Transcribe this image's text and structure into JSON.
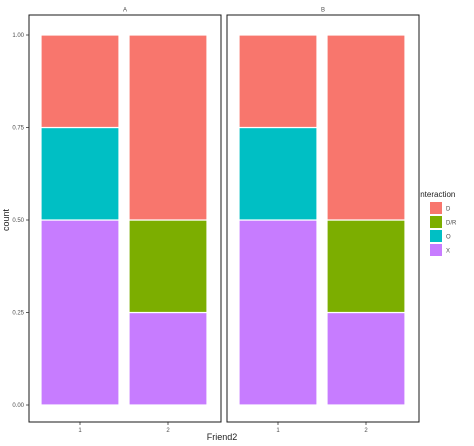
{
  "chart_data": {
    "type": "bar",
    "stacked": true,
    "xlabel": "Friend2",
    "ylabel": "count",
    "ylim": [
      0,
      1
    ],
    "y_ticks": [
      "0.00",
      "0.25",
      "0.50",
      "0.75",
      "1.00"
    ],
    "y_tick_values": [
      0,
      0.25,
      0.5,
      0.75,
      1
    ],
    "categories": [
      "1",
      "2"
    ],
    "facets": [
      {
        "label": "A",
        "bars": [
          {
            "category": "1",
            "segments": [
              {
                "group": "X",
                "value": 0.5
              },
              {
                "group": "O",
                "value": 0.25
              },
              {
                "group": "D",
                "value": 0.25
              }
            ]
          },
          {
            "category": "2",
            "segments": [
              {
                "group": "X",
                "value": 0.25
              },
              {
                "group": "D/R",
                "value": 0.25
              },
              {
                "group": "D",
                "value": 0.5
              }
            ]
          }
        ]
      },
      {
        "label": "B",
        "bars": [
          {
            "category": "1",
            "segments": [
              {
                "group": "X",
                "value": 0.5
              },
              {
                "group": "O",
                "value": 0.25
              },
              {
                "group": "D",
                "value": 0.25
              }
            ]
          },
          {
            "category": "2",
            "segments": [
              {
                "group": "X",
                "value": 0.25
              },
              {
                "group": "D/R",
                "value": 0.25
              },
              {
                "group": "D",
                "value": 0.5
              }
            ]
          }
        ]
      }
    ],
    "legend": {
      "title": "Interaction",
      "placement": "right",
      "entries": [
        {
          "label": "D",
          "color": "#f8766d"
        },
        {
          "label": "D/R",
          "color": "#7cae00"
        },
        {
          "label": "O",
          "color": "#00bfc4"
        },
        {
          "label": "X",
          "color": "#c77cff"
        }
      ]
    },
    "grid": false
  }
}
